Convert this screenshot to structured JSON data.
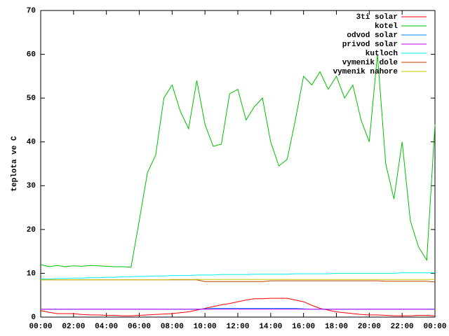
{
  "chart_data": {
    "type": "line",
    "y_label": "teplota ve C",
    "x": [
      0,
      0.5,
      1,
      1.5,
      2,
      2.5,
      3,
      3.5,
      4,
      4.5,
      5,
      5.5,
      6,
      6.5,
      7,
      7.5,
      8,
      8.5,
      9,
      9.5,
      10,
      10.5,
      11,
      11.5,
      12,
      12.5,
      13,
      13.5,
      14,
      14.5,
      15,
      15.5,
      16,
      16.5,
      17,
      17.5,
      18,
      18.5,
      19,
      19.5,
      20,
      20.5,
      21,
      21.5,
      22,
      22.5,
      23,
      23.5,
      24
    ],
    "xlim": [
      0,
      24
    ],
    "xticks": [
      {
        "value": 0,
        "label": "00:00"
      },
      {
        "value": 2,
        "label": "02:00"
      },
      {
        "value": 4,
        "label": "04:00"
      },
      {
        "value": 6,
        "label": "06:00"
      },
      {
        "value": 8,
        "label": "08:00"
      },
      {
        "value": 10,
        "label": "10:00"
      },
      {
        "value": 12,
        "label": "12:00"
      },
      {
        "value": 14,
        "label": "14:00"
      },
      {
        "value": 16,
        "label": "16:00"
      },
      {
        "value": 18,
        "label": "18:00"
      },
      {
        "value": 20,
        "label": "20:00"
      },
      {
        "value": 22,
        "label": "22:00"
      },
      {
        "value": 24,
        "label": "00:00"
      }
    ],
    "ylim": [
      0,
      70
    ],
    "yticks": [
      0,
      10,
      20,
      30,
      40,
      50,
      60,
      70
    ],
    "legend": "top-right",
    "grid": false,
    "series": [
      {
        "name": "3ti solar",
        "color": "#ff0000",
        "values": [
          1.5,
          1.1,
          0.8,
          0.8,
          0.8,
          0.6,
          0.5,
          0.5,
          0.4,
          0.4,
          0.3,
          0.3,
          0.4,
          0.5,
          0.6,
          0.7,
          0.8,
          1,
          1.2,
          1.6,
          2,
          2.4,
          2.8,
          3.1,
          3.5,
          3.9,
          4.2,
          4.2,
          4.3,
          4.3,
          4.3,
          3.9,
          3.5,
          2.7,
          2,
          1.6,
          1.2,
          1,
          0.8,
          0.6,
          0.5,
          0.5,
          0.4,
          0.3,
          0.3,
          0.3,
          0.4,
          0.4,
          0.3
        ]
      },
      {
        "name": "kotel",
        "color": "#00c000",
        "values": [
          12,
          11.5,
          11.8,
          11.5,
          11.7,
          11.6,
          11.8,
          11.7,
          11.6,
          11.5,
          11.5,
          11.4,
          22,
          33,
          37,
          50,
          53,
          47,
          43,
          54,
          44,
          39,
          39.5,
          51,
          52,
          45,
          48,
          50,
          40,
          34.5,
          36,
          45,
          55,
          53,
          56,
          52,
          55,
          50,
          53,
          45,
          40,
          60,
          35,
          27,
          40,
          22,
          16,
          13,
          44
        ]
      },
      {
        "name": "odvod solar",
        "color": "#0080ff",
        "values": [
          1.8,
          1.8,
          1.8,
          1.8,
          1.8,
          1.8,
          1.8,
          1.8,
          1.8,
          1.8,
          1.8,
          1.8,
          1.8,
          1.8,
          1.8,
          1.8,
          1.8,
          1.8,
          1.8,
          1.8,
          1.9,
          2,
          2,
          2,
          2,
          2,
          2,
          2,
          2,
          2,
          2,
          2,
          1.9,
          1.8,
          1.8,
          1.8,
          1.8,
          1.8,
          1.8,
          1.8,
          1.8,
          1.8,
          1.8,
          1.8,
          1.8,
          1.8,
          1.8,
          1.8,
          1.8
        ]
      },
      {
        "name": "privod solar",
        "color": "#c000ff",
        "values": [
          1.8,
          1.8,
          1.8,
          1.8,
          1.8,
          1.8,
          1.8,
          1.8,
          1.8,
          1.8,
          1.8,
          1.8,
          1.8,
          1.8,
          1.8,
          1.8,
          1.8,
          1.8,
          1.8,
          1.8,
          1.8,
          1.8,
          1.8,
          1.8,
          1.8,
          1.8,
          1.8,
          1.8,
          1.8,
          1.8,
          1.8,
          1.8,
          1.8,
          1.8,
          1.8,
          1.8,
          1.8,
          1.8,
          1.8,
          1.8,
          1.8,
          1.8,
          1.8,
          1.8,
          1.8,
          1.8,
          1.8,
          1.8,
          1.8
        ]
      },
      {
        "name": "kutloch",
        "color": "#00eeee",
        "values": [
          8.7,
          8.7,
          8.8,
          8.8,
          8.9,
          8.9,
          9,
          9,
          9.1,
          9.1,
          9.2,
          9.2,
          9.3,
          9.3,
          9.4,
          9.4,
          9.5,
          9.5,
          9.5,
          9.6,
          9.6,
          9.6,
          9.7,
          9.7,
          9.7,
          9.7,
          9.8,
          9.8,
          9.8,
          9.8,
          9.8,
          9.9,
          9.9,
          9.9,
          9.9,
          9.9,
          10,
          10,
          10,
          10,
          10,
          10,
          10,
          10,
          10.1,
          10.1,
          10.1,
          10.1,
          10.1
        ]
      },
      {
        "name": "vymenik dole",
        "color": "#c04000",
        "values": [
          8.5,
          8.5,
          8.5,
          8.5,
          8.5,
          8.5,
          8.5,
          8.5,
          8.5,
          8.5,
          8.5,
          8.5,
          8.5,
          8.5,
          8.5,
          8.5,
          8.5,
          8.5,
          8.5,
          8.5,
          8.1,
          8.1,
          8.1,
          8.1,
          8.1,
          8.1,
          8.1,
          8.1,
          8.3,
          8.3,
          8.3,
          8.3,
          8.3,
          8.3,
          8.3,
          8.3,
          8.3,
          8.3,
          8.3,
          8.3,
          8.3,
          8.3,
          8.2,
          8.2,
          8.2,
          8.2,
          8.2,
          8.2,
          8
        ]
      },
      {
        "name": "vymenik nahore",
        "color": "#c8c800",
        "values": [
          8.5,
          8.5,
          8.5,
          8.5,
          8.5,
          8.5,
          8.5,
          8.5,
          8.5,
          8.5,
          8.5,
          8.5,
          8.5,
          8.5,
          8.5,
          8.5,
          8.6,
          8.6,
          8.6,
          8.6,
          8.6,
          8.6,
          8.6,
          8.6,
          8.6,
          8.6,
          8.6,
          8.6,
          8.6,
          8.6,
          8.6,
          8.6,
          8.6,
          8.6,
          8.6,
          8.6,
          8.6,
          8.6,
          8.6,
          8.6,
          8.6,
          8.6,
          8.6,
          8.6,
          8.6,
          8.6,
          8.6,
          8.6,
          8.6
        ]
      }
    ]
  }
}
